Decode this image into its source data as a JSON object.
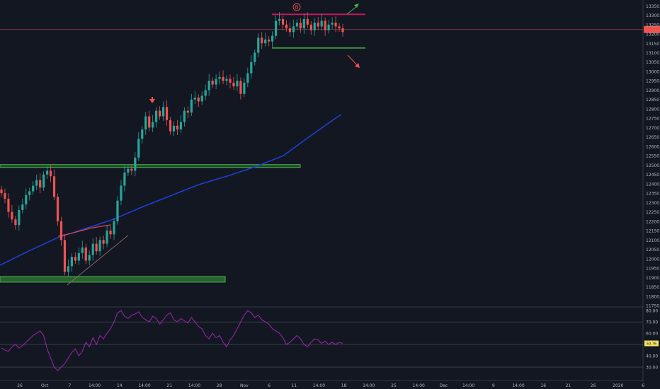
{
  "chart_data": {
    "type": "candlestick",
    "annotation_label": "B",
    "price_axis": {
      "ticks": [
        "13350.0",
        "13300.0",
        "13250.0",
        "13200.0",
        "13150.0",
        "13100.0",
        "13050.0",
        "13000.0",
        "12950.0",
        "12900.0",
        "12850.0",
        "12800.0",
        "12750.0",
        "12700.0",
        "12650.0",
        "12600.0",
        "12550.0",
        "12500.0",
        "12450.0",
        "12400.0",
        "12350.0",
        "12300.0",
        "12250.0",
        "12200.0",
        "12150.0",
        "12100.0",
        "12050.0",
        "12000.0",
        "11950.0",
        "11900.0",
        "11850.0",
        "11800.0",
        "11750.0"
      ],
      "ylim": [
        11750,
        13370
      ]
    },
    "oscillator_axis": {
      "ticks": [
        "80.00",
        "70.00",
        "60.00",
        "50.00",
        "40.00",
        "30.00"
      ],
      "ylim": [
        20,
        82
      ],
      "levels": [
        70,
        50,
        30
      ]
    },
    "time_axis": {
      "ticks": [
        "26",
        "Oct",
        "7",
        "14:00",
        "14",
        "14:00",
        "21",
        "14:00",
        "28",
        "Nov",
        "6",
        "11",
        "14:00",
        "18",
        "14:00",
        "25",
        "14:00",
        "Dec",
        "14:00",
        "9",
        "14:00",
        "16",
        "21",
        "26",
        "2020",
        "6"
      ]
    },
    "resistance_levels": [
      {
        "name": "resistance-top",
        "value": 13305,
        "color": "#c2185b"
      },
      {
        "name": "support-range",
        "value": 13125,
        "color": "#4caf50"
      },
      {
        "name": "support-zone-mid",
        "value": 12495,
        "color": "#4caf50"
      },
      {
        "name": "support-zone-low",
        "value": 11890,
        "color": "#4caf50"
      }
    ],
    "current_price_line": 13224,
    "ma_slow": [
      [
        0,
        11965
      ],
      [
        40,
        12040
      ],
      [
        80,
        12110
      ],
      [
        120,
        12160
      ],
      [
        160,
        12210
      ],
      [
        200,
        12275
      ],
      [
        240,
        12335
      ],
      [
        280,
        12395
      ],
      [
        320,
        12440
      ],
      [
        360,
        12490
      ],
      [
        400,
        12550
      ],
      [
        440,
        12660
      ],
      [
        470,
        12740
      ],
      [
        482,
        12770
      ]
    ],
    "ma_fast": [
      [
        82,
        12120
      ],
      [
        100,
        12135
      ],
      [
        130,
        12165
      ],
      [
        155,
        12180
      ]
    ],
    "series_closes": [
      12350,
      12320,
      12250,
      12210,
      12180,
      12260,
      12290,
      12340,
      12360,
      12390,
      12420,
      12380,
      12450,
      12470,
      12440,
      12330,
      12200,
      12100,
      11930,
      11960,
      12010,
      11990,
      12030,
      12060,
      11990,
      12020,
      12080,
      12040,
      12100,
      12080,
      12150,
      12130,
      12200,
      12310,
      12390,
      12460,
      12480,
      12470,
      12540,
      12640,
      12690,
      12760,
      12700,
      12730,
      12790,
      12760,
      12810,
      12740,
      12680,
      12710,
      12690,
      12730,
      12790,
      12780,
      12850,
      12860,
      12840,
      12870,
      12900,
      12950,
      12930,
      12960,
      12970,
      12950,
      12960,
      12940,
      12920,
      12950,
      12880,
      12940,
      12990,
      13050,
      13100,
      13180,
      13150,
      13170,
      13160,
      13190,
      13270,
      13280,
      13250,
      13230,
      13210,
      13240,
      13260,
      13230,
      13280,
      13250,
      13220,
      13260,
      13240,
      13270,
      13220,
      13250,
      13260,
      13240,
      13230,
      13210
    ],
    "oscillator": [
      47,
      45,
      44,
      48,
      50,
      47,
      49,
      52,
      55,
      58,
      60,
      62,
      58,
      46,
      38,
      30,
      27,
      30,
      33,
      38,
      43,
      46,
      40,
      44,
      52,
      48,
      56,
      50,
      58,
      55,
      60,
      64,
      70,
      78,
      80,
      75,
      73,
      76,
      77,
      79,
      74,
      72,
      70,
      75,
      73,
      68,
      72,
      76,
      78,
      72,
      70,
      73,
      71,
      69,
      74,
      70,
      66,
      64,
      58,
      55,
      60,
      56,
      58,
      52,
      48,
      54,
      58,
      64,
      70,
      76,
      80,
      78,
      74,
      76,
      72,
      70,
      68,
      64,
      62,
      60,
      56,
      50,
      52,
      55,
      58,
      55,
      50,
      48,
      52,
      55,
      54,
      51,
      53,
      50,
      52,
      50,
      52,
      51
    ],
    "oscillator_marker": "50.76"
  }
}
